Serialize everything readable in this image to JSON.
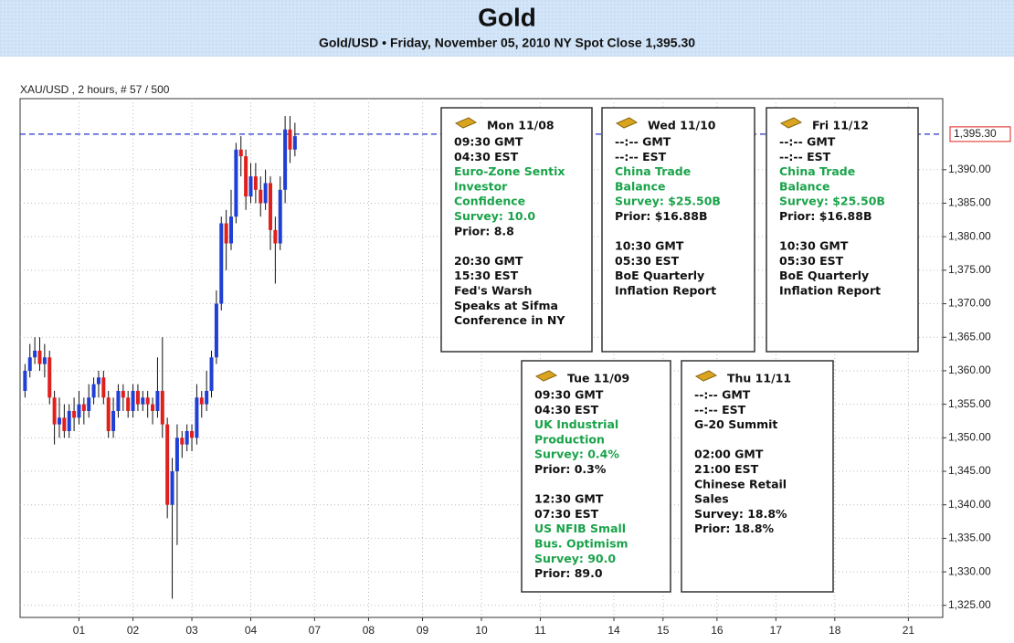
{
  "chart_data": {
    "type": "candlestick",
    "title": "Gold",
    "subtitle": "Gold/USD • Friday, November 05, 2010 NY Spot Close 1,395.30",
    "label": "XAU/USD , 2 hours, # 57 / 500",
    "up_color": "#1f3fd6",
    "down_color": "#e0201c",
    "grid": true,
    "x": [
      1,
      2,
      3,
      4,
      5,
      6,
      7,
      8,
      9,
      10,
      11,
      12,
      13,
      14,
      15,
      16,
      17,
      18,
      19,
      20,
      21,
      22,
      23,
      24,
      25,
      26,
      27,
      28,
      29,
      30,
      31,
      32,
      33,
      34,
      35,
      36,
      37,
      38,
      39,
      40,
      41,
      42,
      43,
      44,
      45,
      46,
      47,
      48,
      49,
      50,
      51,
      52,
      53,
      54,
      55,
      56
    ],
    "open": [
      1357,
      1360,
      1362,
      1363,
      1361,
      1362,
      1356,
      1352,
      1353,
      1351,
      1354,
      1353,
      1355,
      1354,
      1356,
      1358,
      1359,
      1356,
      1351,
      1354,
      1357,
      1356,
      1354,
      1357,
      1355,
      1356,
      1355,
      1354,
      1357,
      1352,
      1340,
      1345,
      1350,
      1349,
      1351,
      1350,
      1356,
      1355,
      1357,
      1362,
      1370,
      1382,
      1379,
      1383,
      1393,
      1392,
      1386,
      1389,
      1387,
      1385,
      1388,
      1381,
      1379,
      1387,
      1396,
      1393
    ],
    "high": [
      1361,
      1364,
      1365,
      1365,
      1364,
      1363,
      1357,
      1356,
      1355,
      1355,
      1356,
      1357,
      1356,
      1358,
      1359,
      1360,
      1360,
      1357,
      1356,
      1358,
      1358,
      1357,
      1358,
      1358,
      1357,
      1357,
      1356,
      1362,
      1365,
      1353,
      1347,
      1352,
      1351,
      1352,
      1352,
      1358,
      1357,
      1360,
      1363,
      1372,
      1383,
      1384,
      1387,
      1394,
      1395,
      1393,
      1391,
      1391,
      1389,
      1390,
      1389,
      1383,
      1389,
      1398,
      1398,
      1397
    ],
    "low": [
      1356,
      1359,
      1361,
      1360,
      1359,
      1355,
      1349,
      1350,
      1350,
      1350,
      1351,
      1352,
      1352,
      1353,
      1355,
      1356,
      1355,
      1350,
      1350,
      1353,
      1354,
      1353,
      1353,
      1354,
      1354,
      1353,
      1352,
      1353,
      1350,
      1338,
      1326,
      1334,
      1347,
      1348,
      1348,
      1349,
      1353,
      1354,
      1356,
      1361,
      1369,
      1375,
      1378,
      1382,
      1389,
      1384,
      1385,
      1385,
      1383,
      1384,
      1378,
      1373,
      1378,
      1385,
      1391,
      1392
    ],
    "close": [
      1360,
      1362,
      1363,
      1361,
      1362,
      1356,
      1352,
      1353,
      1351,
      1354,
      1353,
      1355,
      1354,
      1356,
      1358,
      1359,
      1356,
      1351,
      1354,
      1357,
      1356,
      1354,
      1357,
      1355,
      1356,
      1355,
      1354,
      1357,
      1352,
      1340,
      1345,
      1350,
      1349,
      1351,
      1350,
      1356,
      1355,
      1357,
      1362,
      1370,
      1382,
      1379,
      1383,
      1393,
      1392,
      1386,
      1389,
      1387,
      1385,
      1388,
      1381,
      1379,
      1387,
      1396,
      1393,
      1395
    ],
    "xlim": [
      0,
      188
    ],
    "xticks": [
      {
        "value": 12,
        "label": "01"
      },
      {
        "value": 23,
        "label": "02"
      },
      {
        "value": 35,
        "label": "03"
      },
      {
        "value": 47,
        "label": "04"
      },
      {
        "value": 60,
        "label": "07"
      },
      {
        "value": 71,
        "label": "08"
      },
      {
        "value": 82,
        "label": "09"
      },
      {
        "value": 94,
        "label": "10"
      },
      {
        "value": 106,
        "label": "11"
      },
      {
        "value": 121,
        "label": "14"
      },
      {
        "value": 131,
        "label": "15"
      },
      {
        "value": 142,
        "label": "16"
      },
      {
        "value": 154,
        "label": "17"
      },
      {
        "value": 166,
        "label": "18"
      },
      {
        "value": 181,
        "label": "21"
      }
    ],
    "ylim": [
      1323.2,
      1400.6
    ],
    "yticks": [
      {
        "value": 1325,
        "label": "1,325.00"
      },
      {
        "value": 1330,
        "label": "1,330.00"
      },
      {
        "value": 1335,
        "label": "1,335.00"
      },
      {
        "value": 1340,
        "label": "1,340.00"
      },
      {
        "value": 1345,
        "label": "1,345.00"
      },
      {
        "value": 1350,
        "label": "1,350.00"
      },
      {
        "value": 1355,
        "label": "1,355.00"
      },
      {
        "value": 1360,
        "label": "1,360.00"
      },
      {
        "value": 1365,
        "label": "1,365.00"
      },
      {
        "value": 1370,
        "label": "1,370.00"
      },
      {
        "value": 1375,
        "label": "1,375.00"
      },
      {
        "value": 1380,
        "label": "1,380.00"
      },
      {
        "value": 1385,
        "label": "1,385.00"
      },
      {
        "value": 1390,
        "label": "1,390.00"
      }
    ],
    "spot": {
      "value": 1395.3,
      "label": "1,395.30",
      "color": "#2233cc"
    },
    "annotations": [
      {
        "title": "Mon 11/08",
        "groups": [
          [
            {
              "text": "09:30 GMT",
              "color": "#111"
            },
            {
              "text": "04:30 EST",
              "color": "#111"
            },
            {
              "text": "Euro-Zone Sentix",
              "color": "#1aa34a"
            },
            {
              "text": "Investor",
              "color": "#1aa34a"
            },
            {
              "text": "Confidence",
              "color": "#1aa34a"
            },
            {
              "text": "Survey: 10.0",
              "color": "#1aa34a"
            },
            {
              "text": "Prior: 8.8",
              "color": "#111"
            }
          ],
          [
            {
              "text": "20:30 GMT",
              "color": "#111"
            },
            {
              "text": "15:30 EST",
              "color": "#111"
            },
            {
              "text": "Fed's Warsh",
              "color": "#111"
            },
            {
              "text": "Speaks at Sifma",
              "color": "#111"
            },
            {
              "text": "Conference in NY",
              "color": "#111"
            }
          ]
        ]
      },
      {
        "title": "Wed 11/10",
        "groups": [
          [
            {
              "text": "--:-- GMT",
              "color": "#111"
            },
            {
              "text": "--:-- EST",
              "color": "#111"
            },
            {
              "text": "China Trade",
              "color": "#1aa34a"
            },
            {
              "text": "Balance",
              "color": "#1aa34a"
            },
            {
              "text": "Survey: $25.50B",
              "color": "#1aa34a"
            },
            {
              "text": "Prior: $16.88B",
              "color": "#111"
            }
          ],
          [
            {
              "text": "10:30 GMT",
              "color": "#111"
            },
            {
              "text": "05:30 EST",
              "color": "#111"
            },
            {
              "text": "BoE Quarterly",
              "color": "#111"
            },
            {
              "text": "Inflation Report",
              "color": "#111"
            }
          ]
        ]
      },
      {
        "title": "Fri 11/12",
        "groups": [
          [
            {
              "text": "--:-- GMT",
              "color": "#111"
            },
            {
              "text": "--:-- EST",
              "color": "#111"
            },
            {
              "text": "China Trade",
              "color": "#1aa34a"
            },
            {
              "text": "Balance",
              "color": "#1aa34a"
            },
            {
              "text": "Survey: $25.50B",
              "color": "#1aa34a"
            },
            {
              "text": "Prior: $16.88B",
              "color": "#111"
            }
          ],
          [
            {
              "text": "10:30 GMT",
              "color": "#111"
            },
            {
              "text": "05:30 EST",
              "color": "#111"
            },
            {
              "text": "BoE Quarterly",
              "color": "#111"
            },
            {
              "text": "Inflation Report",
              "color": "#111"
            }
          ]
        ]
      },
      {
        "title": "Tue 11/09",
        "groups": [
          [
            {
              "text": "09:30 GMT",
              "color": "#111"
            },
            {
              "text": "04:30 EST",
              "color": "#111"
            },
            {
              "text": "UK Industrial",
              "color": "#1aa34a"
            },
            {
              "text": "Production",
              "color": "#1aa34a"
            },
            {
              "text": "Survey: 0.4%",
              "color": "#1aa34a"
            },
            {
              "text": "Prior: 0.3%",
              "color": "#111"
            }
          ],
          [
            {
              "text": "12:30 GMT",
              "color": "#111"
            },
            {
              "text": "07:30 EST",
              "color": "#111"
            },
            {
              "text": "US NFIB Small",
              "color": "#1aa34a"
            },
            {
              "text": "Bus. Optimism",
              "color": "#1aa34a"
            },
            {
              "text": "Survey: 90.0",
              "color": "#1aa34a"
            },
            {
              "text": "Prior: 89.0",
              "color": "#111"
            }
          ]
        ]
      },
      {
        "title": "Thu 11/11",
        "groups": [
          [
            {
              "text": "--:-- GMT",
              "color": "#111"
            },
            {
              "text": "--:-- EST",
              "color": "#111"
            },
            {
              "text": "G-20 Summit",
              "color": "#111"
            }
          ],
          [
            {
              "text": "02:00 GMT",
              "color": "#111"
            },
            {
              "text": "21:00 EST",
              "color": "#111"
            },
            {
              "text": "Chinese Retail",
              "color": "#111"
            },
            {
              "text": "Sales",
              "color": "#111"
            },
            {
              "text": "Survey: 18.8%",
              "color": "#111"
            },
            {
              "text": "Prior: 18.8%",
              "color": "#111"
            }
          ]
        ]
      }
    ]
  }
}
